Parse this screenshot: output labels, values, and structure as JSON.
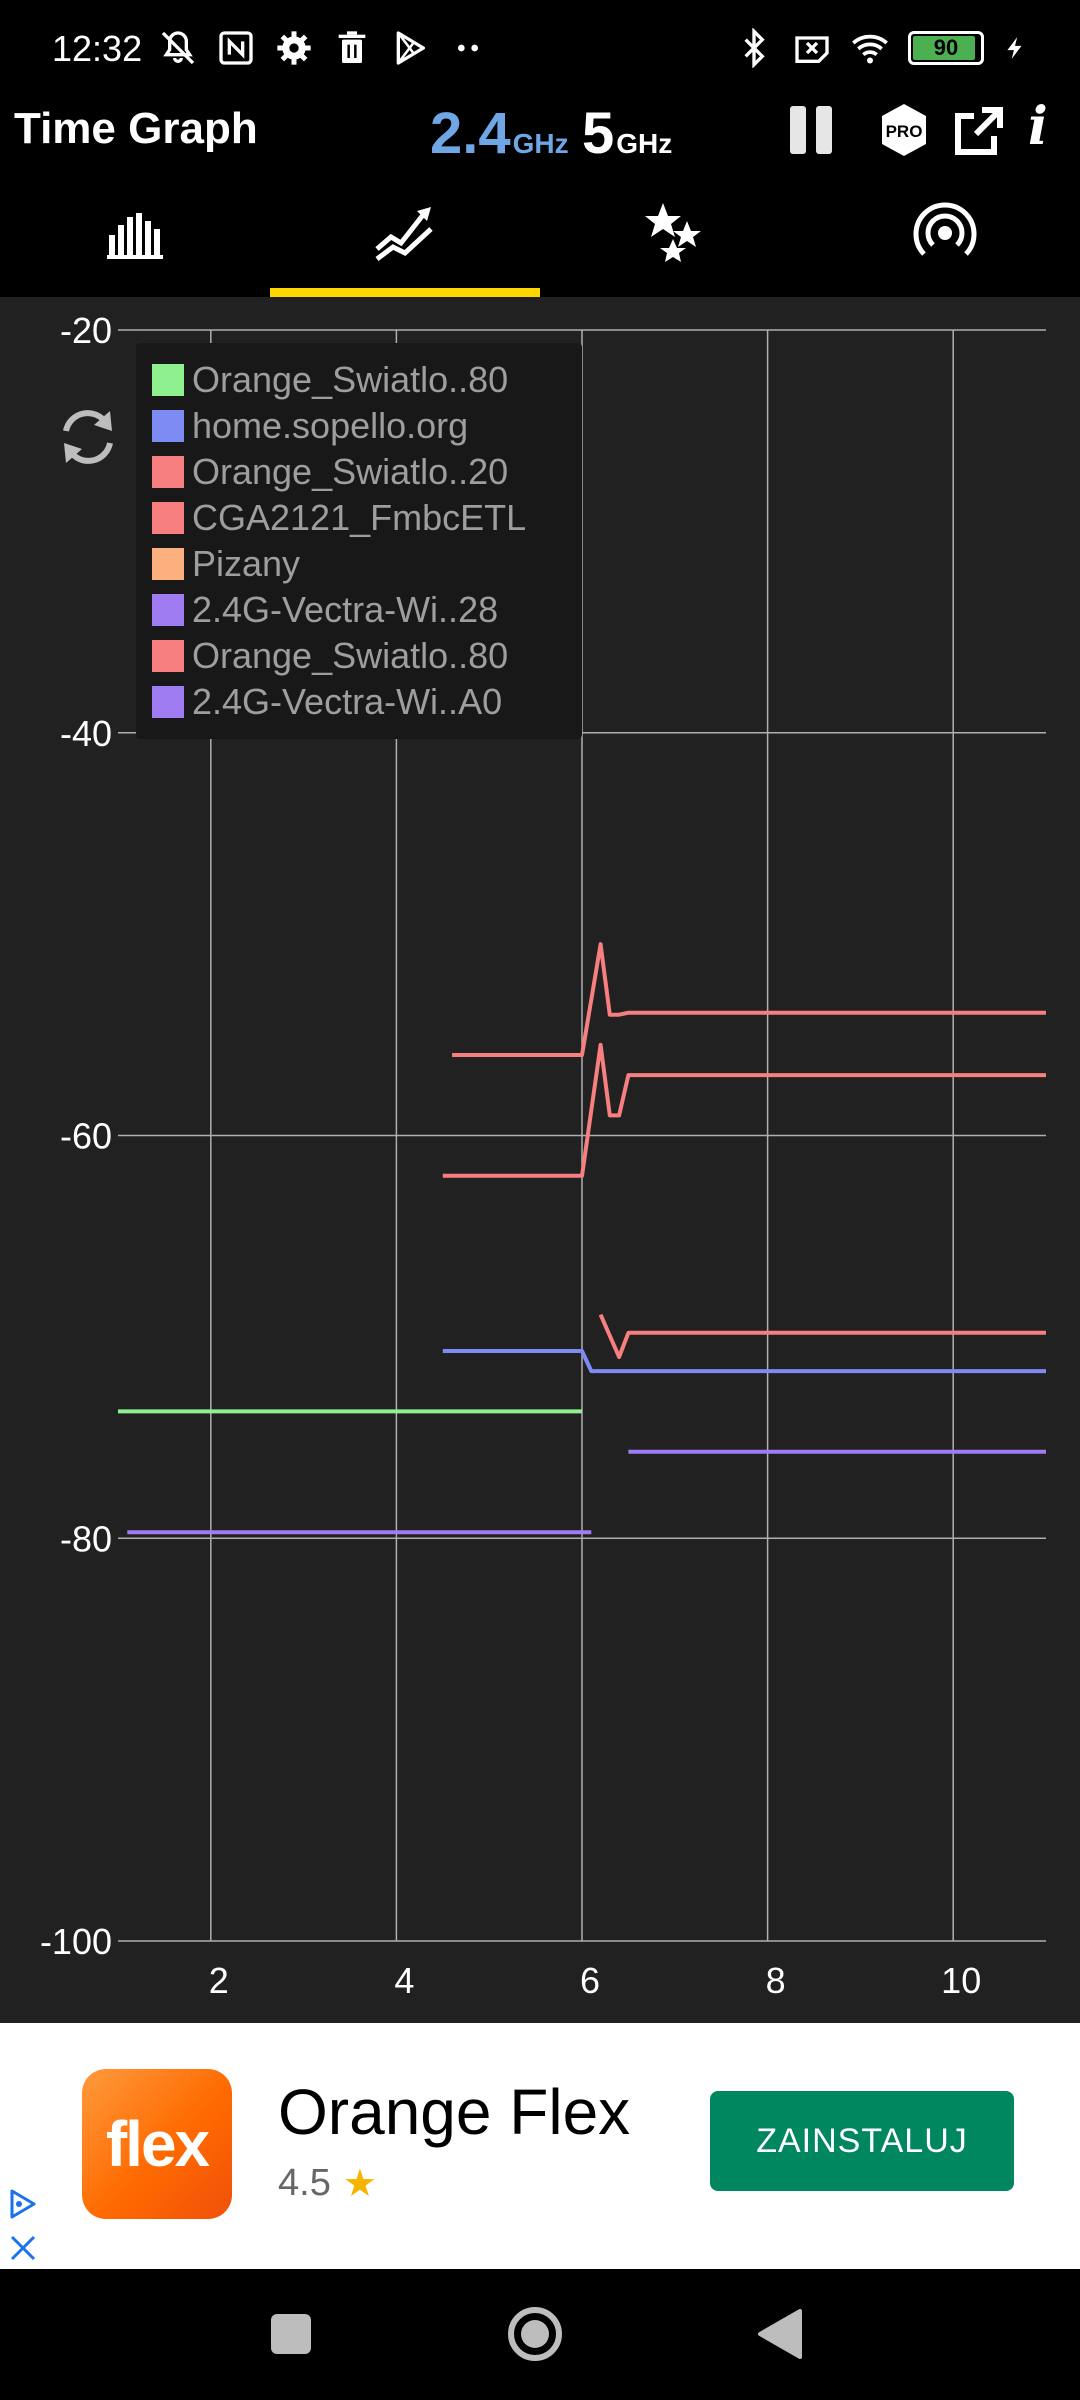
{
  "status_bar": {
    "time": "12:32",
    "battery": "90",
    "icons_left": [
      "muted-bell-icon",
      "nfc-icon",
      "settings-icon",
      "trash-icon",
      "play-store-icon",
      "more-dots-icon"
    ],
    "icons_right": [
      "bluetooth-icon",
      "no-sim-icon",
      "wifi-icon",
      "battery-icon",
      "charging-icon"
    ]
  },
  "app_bar": {
    "title": "Time Graph",
    "band_24": {
      "value": "2.4",
      "unit": "GHz"
    },
    "band_5": {
      "value": "5",
      "unit": "GHz"
    },
    "pro_badge": "PRO",
    "info": "i"
  },
  "tabs": [
    {
      "name": "channel-graph",
      "icon": "bar-graph-icon"
    },
    {
      "name": "time-graph",
      "icon": "line-graph-icon",
      "selected": true
    },
    {
      "name": "channel-rating",
      "icon": "stars-icon"
    },
    {
      "name": "access-points",
      "icon": "wifi-signal-icon"
    }
  ],
  "colors": {
    "accent": "#ffd600",
    "band_24": "#6ea6e6",
    "chart_bg": "#212121",
    "grid": "#b0b0b0",
    "ad_button": "#01875f"
  },
  "chart_data": {
    "type": "line",
    "xlim": [
      1,
      11
    ],
    "ylim": [
      -100,
      -20
    ],
    "x_ticks": [
      2,
      4,
      6,
      8,
      10
    ],
    "y_ticks": [
      -20,
      -40,
      -60,
      -80,
      -100
    ],
    "grid": true,
    "legend_position": "top-left",
    "series": [
      {
        "name": "Orange_Swiatlo..80",
        "color": "#8ef08e",
        "points": [
          [
            1.0,
            -73.7
          ],
          [
            6.0,
            -73.7
          ]
        ]
      },
      {
        "name": "home.sopello.org",
        "color": "#7f8bf5",
        "points": [
          [
            4.5,
            -70.7
          ],
          [
            6.0,
            -70.7
          ],
          [
            6.1,
            -71.7
          ],
          [
            11.0,
            -71.7
          ]
        ]
      },
      {
        "name": "Orange_Swiatlo..20",
        "color": "#f77f7f",
        "points": [
          [
            4.5,
            -62.0
          ],
          [
            6.0,
            -62.0
          ],
          [
            6.2,
            -55.5
          ],
          [
            6.3,
            -59.0
          ],
          [
            6.4,
            -59.0
          ],
          [
            6.5,
            -57.0
          ],
          [
            11.0,
            -57.0
          ]
        ]
      },
      {
        "name": "CGA2121_FmbcETL",
        "color": "#f77f7f",
        "points": [
          [
            4.6,
            -56.0
          ],
          [
            6.0,
            -56.0
          ],
          [
            6.2,
            -50.5
          ],
          [
            6.3,
            -54.0
          ],
          [
            6.4,
            -54.0
          ],
          [
            6.5,
            -53.9
          ],
          [
            11.0,
            -53.9
          ]
        ]
      },
      {
        "name": "Pizany",
        "color": "#fbb07d",
        "points": []
      },
      {
        "name": "2.4G-Vectra-Wi..28",
        "color": "#a07cf2",
        "points": [
          [
            6.5,
            -75.7
          ],
          [
            11.0,
            -75.7
          ]
        ]
      },
      {
        "name": "Orange_Swiatlo..80",
        "color": "#f77f7f",
        "points": [
          [
            6.2,
            -68.9
          ],
          [
            6.4,
            -71.0
          ],
          [
            6.5,
            -69.8
          ],
          [
            11.0,
            -69.8
          ]
        ]
      },
      {
        "name": "2.4G-Vectra-Wi..A0",
        "color": "#a07cf2",
        "points": [
          [
            1.1,
            -79.7
          ],
          [
            6.1,
            -79.7
          ]
        ]
      }
    ]
  },
  "ad": {
    "logo_text": "flex",
    "title": "Orange Flex",
    "rating": "4.5",
    "button": "ZAINSTALUJ"
  }
}
